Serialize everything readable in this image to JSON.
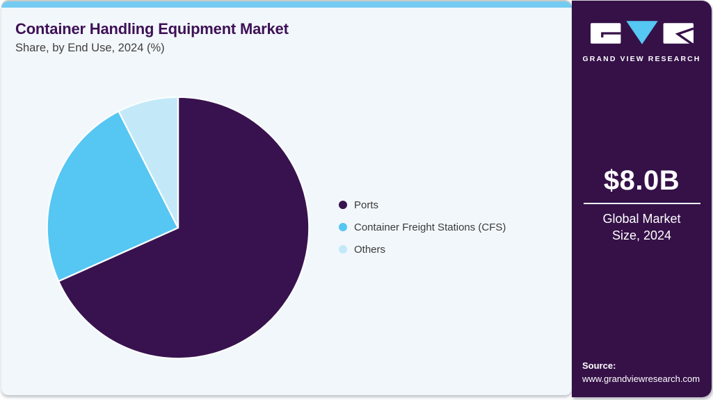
{
  "header": {
    "title": "Container Handling Equipment Market",
    "subtitle": "Share, by End Use, 2024 (%)"
  },
  "chart_data": {
    "type": "pie",
    "title": "Container Handling Equipment Market Share, by End Use, 2024 (%)",
    "categories": [
      "Ports",
      "Container Freight Stations (CFS)",
      "Others"
    ],
    "values": [
      68.3,
      24.2,
      7.5
    ],
    "unit": "percent",
    "colors": [
      "#38124E",
      "#56C6F2",
      "#C3E9F9"
    ],
    "start_angle": "top",
    "direction": "clockwise",
    "legend_position": "right",
    "data_labels": "none"
  },
  "sidebar": {
    "brand_name": "GRAND VIEW RESEARCH",
    "stat": {
      "value": "$8.0B",
      "label": "Global Market Size, 2024"
    },
    "source": {
      "label": "Source:",
      "url": "www.grandviewresearch.com"
    }
  },
  "theme": {
    "card_background": "#F2F7FB",
    "accent_strip": "#74CBF1",
    "title_color": "#3E1156",
    "subtitle_color": "#3F3F3F",
    "legend_text_color": "#3A3A3A",
    "sidebar_background": "#351148",
    "sidebar_text_color": "#FFFFFF",
    "pie_separator_color": "#FAFDFE"
  }
}
